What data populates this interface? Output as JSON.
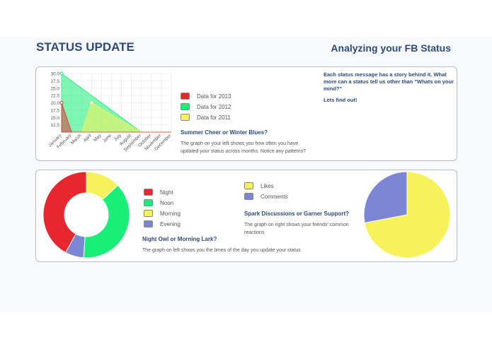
{
  "header": {
    "title": "STATUS UPDATE",
    "subtitle": "Analyzing your FB Status"
  },
  "card1": {
    "legend": [
      {
        "label": "Data for 2013",
        "color": "#e8262f"
      },
      {
        "label": "Data for 2012",
        "color": "#19ef76"
      },
      {
        "label": "Data for 2011",
        "color": "#f7f25a"
      }
    ],
    "heading": "Summer Cheer or Winter Blues?",
    "description": "The graph on your left shows you how often you have updated your status across months. Notice any patterns?",
    "side_text": "Each status message has a story behind it. What more can a status tell us other than \"Whats on your mind?\"",
    "side_cta": "Lets find out!"
  },
  "card2": {
    "legend": [
      {
        "label": "Night",
        "color": "#e8262f"
      },
      {
        "label": "Noon",
        "color": "#19ef76"
      },
      {
        "label": "Morning",
        "color": "#f7f25a"
      },
      {
        "label": "Evening",
        "color": "#7b86d4"
      }
    ],
    "heading": "Night Owl or Morning Lark?",
    "description": "The graph on left shows you the times of the day you update your status",
    "legend2": [
      {
        "label": "Likes",
        "color": "#f7f25a"
      },
      {
        "label": "Comments",
        "color": "#7b86d4"
      }
    ],
    "heading2": "Spark Discussions or Garner Support?",
    "description2": "The graph on right shows your friends' common reactions"
  },
  "chart_data": [
    {
      "type": "area",
      "categories": [
        "January",
        "February",
        "March",
        "April",
        "May",
        "June",
        "July",
        "August",
        "September",
        "October",
        "November",
        "December"
      ],
      "ylim": [
        10,
        30
      ],
      "yticks": [
        "30.0",
        "27.5",
        "25.0",
        "22.5",
        "20.0",
        "17.5",
        "15.0",
        "12.5"
      ],
      "grid": true,
      "series": [
        {
          "name": "Data for 2012",
          "color": "#19ef76",
          "values": [
            30,
            27.5,
            25,
            22.5,
            20,
            17.5,
            15,
            12.5,
            10,
            10,
            10,
            10
          ]
        },
        {
          "name": "Data for 2011",
          "color": "#f7f25a",
          "values": [
            10,
            10,
            10,
            20,
            18,
            16,
            14,
            12,
            10,
            10,
            10,
            10
          ]
        },
        {
          "name": "Data for 2013",
          "color": "#e8262f",
          "values": [
            20,
            10,
            10,
            10,
            10,
            10,
            10,
            10,
            10,
            10,
            10,
            10
          ]
        }
      ]
    },
    {
      "type": "pie",
      "variant": "doughnut",
      "labels": [
        "Night",
        "Noon",
        "Morning",
        "Evening"
      ],
      "values": [
        42,
        38,
        13,
        7
      ],
      "colors": [
        "#e8262f",
        "#19ef76",
        "#f7f25a",
        "#7b86d4"
      ]
    },
    {
      "type": "pie",
      "labels": [
        "Likes",
        "Comments"
      ],
      "values": [
        72,
        28
      ],
      "colors": [
        "#f7f25a",
        "#7b86d4"
      ]
    }
  ]
}
